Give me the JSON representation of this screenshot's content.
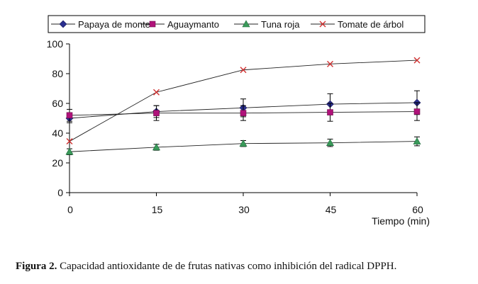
{
  "chart_data": {
    "type": "line",
    "xlabel": "Tiempo (min)",
    "ylabel": "",
    "x": [
      0,
      15,
      30,
      45,
      60
    ],
    "xticks": [
      "0",
      "15",
      "30",
      "45",
      "60"
    ],
    "xlim": [
      0,
      60
    ],
    "ylim": [
      0,
      100
    ],
    "yticks": [
      "0",
      "20",
      "40",
      "60",
      "80",
      "100"
    ],
    "grid": false,
    "legend_position": "top",
    "series": [
      {
        "name": "Papaya de monte",
        "marker": "diamond",
        "color": "#2a2f8f",
        "values": [
          50,
          54.5,
          57,
          59.5,
          60.5
        ],
        "err": [
          3,
          4,
          6,
          7,
          8
        ]
      },
      {
        "name": "Aguaymanto",
        "marker": "square",
        "color": "#b0127a",
        "values": [
          52,
          53.5,
          53.5,
          54,
          54.5
        ],
        "err": [
          4,
          5,
          5,
          6,
          6
        ]
      },
      {
        "name": "Tuna roja",
        "marker": "triangle",
        "color": "#3a9a5a",
        "values": [
          27.5,
          30.5,
          33,
          33.5,
          34.5
        ],
        "err": [
          2,
          2,
          2,
          2.5,
          3
        ]
      },
      {
        "name": "Tomate de árbol",
        "marker": "x",
        "color": "#d03030",
        "values": [
          34.5,
          67.5,
          82.5,
          86.5,
          89
        ],
        "err": null
      }
    ]
  },
  "caption": {
    "label": "Figura 2.",
    "text": " Capacidad antioxidante de de frutas nativas como inhibición del radical DPPH."
  }
}
